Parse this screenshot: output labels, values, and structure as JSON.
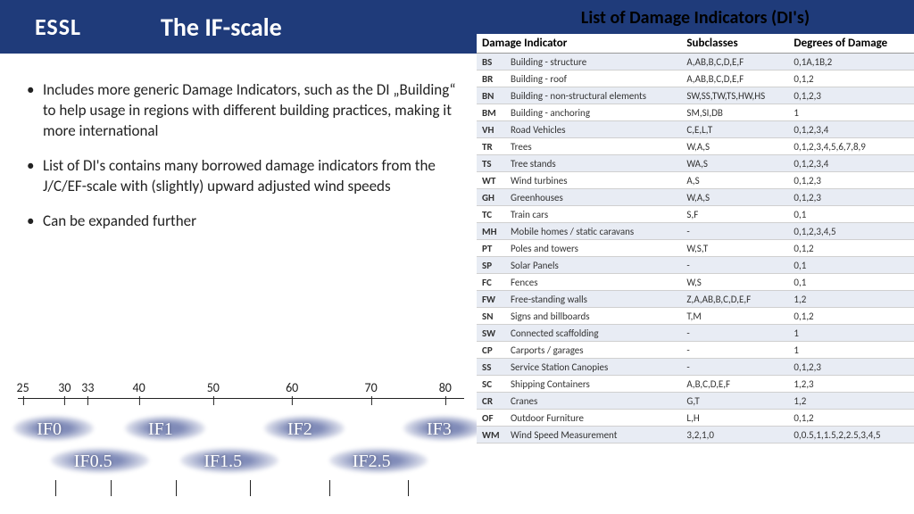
{
  "header": {
    "logo_text": "ESSL",
    "title": "The IF-scale"
  },
  "bullets": [
    "Includes more generic Damage Indicators, such as the DI „Building“ to help usage in regions with different building practices, making it more international",
    "List of DI's contains many borrowed damage indicators from the J/C/EF-scale with (slightly) upward adjusted wind speeds",
    "Can be expanded further"
  ],
  "scale": {
    "ticks": [
      {
        "label": "25",
        "pos": 3
      },
      {
        "label": "30",
        "pos": 12
      },
      {
        "label": "33",
        "pos": 17
      },
      {
        "label": "40",
        "pos": 28
      },
      {
        "label": "50",
        "pos": 44
      },
      {
        "label": "60",
        "pos": 61
      },
      {
        "label": "70",
        "pos": 78
      },
      {
        "label": "80",
        "pos": 94
      }
    ],
    "if_labels_top": [
      {
        "text": "IF0",
        "pos": 6
      },
      {
        "text": "IF1",
        "pos": 30
      },
      {
        "text": "IF2",
        "pos": 60
      },
      {
        "text": "IF3",
        "pos": 90
      }
    ],
    "if_labels_bot": [
      {
        "text": "IF0.5",
        "pos": 14
      },
      {
        "text": "IF1.5",
        "pos": 42
      },
      {
        "text": "IF2.5",
        "pos": 74
      }
    ],
    "bticks": [
      10,
      22,
      36,
      52,
      69,
      86
    ]
  },
  "table": {
    "title": "List of Damage Indicators (DI's)",
    "columns": [
      "Damage Indicator",
      "Subclasses",
      "Degrees of Damage"
    ],
    "rows": [
      {
        "code": "BS",
        "name": "Building - structure",
        "sub": "A,AB,B,C,D,E,F",
        "deg": "0,1A,1B,2",
        "alt": true
      },
      {
        "code": "BR",
        "name": "Building - roof",
        "sub": "A,AB,B,C,D,E,F",
        "deg": "0,1,2",
        "alt": false
      },
      {
        "code": "BN",
        "name": "Building - non-structural elements",
        "sub": "SW,SS,TW,TS,HW,HS",
        "deg": "0,1,2,3",
        "alt": true
      },
      {
        "code": "BM",
        "name": "Building - anchoring",
        "sub": "SM,SI,DB",
        "deg": "1",
        "alt": false
      },
      {
        "code": "VH",
        "name": "Road Vehicles",
        "sub": "C,E,L,T",
        "deg": "0,1,2,3,4",
        "alt": true
      },
      {
        "code": "TR",
        "name": "Trees",
        "sub": "W,A,S",
        "deg": "0,1,2,3,4,5,6,7,8,9",
        "alt": false
      },
      {
        "code": "TS",
        "name": "Tree stands",
        "sub": "WA,S",
        "deg": "0,1,2,3,4",
        "alt": true
      },
      {
        "code": "WT",
        "name": "Wind turbines",
        "sub": "A,S",
        "deg": "0,1,2,3",
        "alt": false
      },
      {
        "code": "GH",
        "name": "Greenhouses",
        "sub": "W,A,S",
        "deg": "0,1,2,3",
        "alt": true
      },
      {
        "code": "TC",
        "name": "Train cars",
        "sub": "S,F",
        "deg": "0,1",
        "alt": false
      },
      {
        "code": "MH",
        "name": "Mobile homes / static caravans",
        "sub": "-",
        "deg": "0,1,2,3,4,5",
        "alt": true
      },
      {
        "code": "PT",
        "name": "Poles and towers",
        "sub": "W,S,T",
        "deg": "0,1,2",
        "alt": false
      },
      {
        "code": "SP",
        "name": "Solar Panels",
        "sub": "-",
        "deg": "0,1",
        "alt": true
      },
      {
        "code": "FC",
        "name": "Fences",
        "sub": "W,S",
        "deg": "0,1",
        "alt": false
      },
      {
        "code": "FW",
        "name": "Free-standing walls",
        "sub": "Z,A,AB,B,C,D,E,F",
        "deg": "1,2",
        "alt": true
      },
      {
        "code": "SN",
        "name": "Signs and billboards",
        "sub": "T,M",
        "deg": "0,1,2",
        "alt": false
      },
      {
        "code": "SW",
        "name": "Connected scaffolding",
        "sub": "-",
        "deg": "1",
        "alt": true
      },
      {
        "code": "CP",
        "name": "Carports / garages",
        "sub": "-",
        "deg": "1",
        "alt": false
      },
      {
        "code": "SS",
        "name": "Service Station Canopies",
        "sub": "-",
        "deg": "0,1,2,3",
        "alt": true
      },
      {
        "code": "SC",
        "name": "Shipping Containers",
        "sub": "A,B,C,D,E,F",
        "deg": "1,2,3",
        "alt": false
      },
      {
        "code": "CR",
        "name": "Cranes",
        "sub": "G,T",
        "deg": "1,2",
        "alt": true
      },
      {
        "code": "OF",
        "name": "Outdoor Furniture",
        "sub": "L,H",
        "deg": "0,1,2",
        "alt": false
      },
      {
        "code": "WM",
        "name": "Wind Speed Measurement",
        "sub": "3,2,1,0",
        "deg": "0,0.5,1,1.5,2,2.5,3,4,5",
        "alt": true
      }
    ]
  }
}
